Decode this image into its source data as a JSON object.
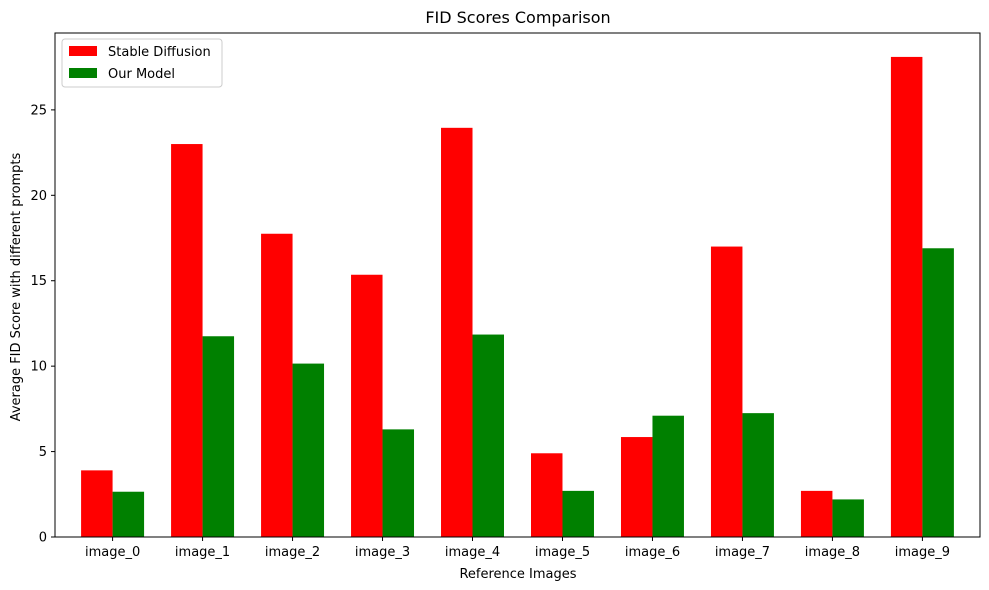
{
  "chart_data": {
    "type": "bar",
    "title": "FID Scores Comparison",
    "xlabel": "Reference Images",
    "ylabel": "Average FID Score with different prompts",
    "categories": [
      "image_0",
      "image_1",
      "image_2",
      "image_3",
      "image_4",
      "image_5",
      "image_6",
      "image_7",
      "image_8",
      "image_9"
    ],
    "series": [
      {
        "name": "Stable Diffusion",
        "color": "#ff0000",
        "values": [
          3.9,
          23.0,
          17.75,
          15.35,
          23.95,
          4.9,
          5.85,
          17.0,
          2.7,
          28.1
        ]
      },
      {
        "name": "Our Model",
        "color": "#008000",
        "values": [
          2.65,
          11.75,
          10.15,
          6.3,
          11.85,
          2.7,
          7.1,
          7.25,
          2.2,
          16.9
        ]
      }
    ],
    "yticks": [
      0,
      5,
      10,
      15,
      20,
      25
    ],
    "ylim": [
      0,
      29.5
    ],
    "grid": false,
    "legend_position": "top-left"
  }
}
